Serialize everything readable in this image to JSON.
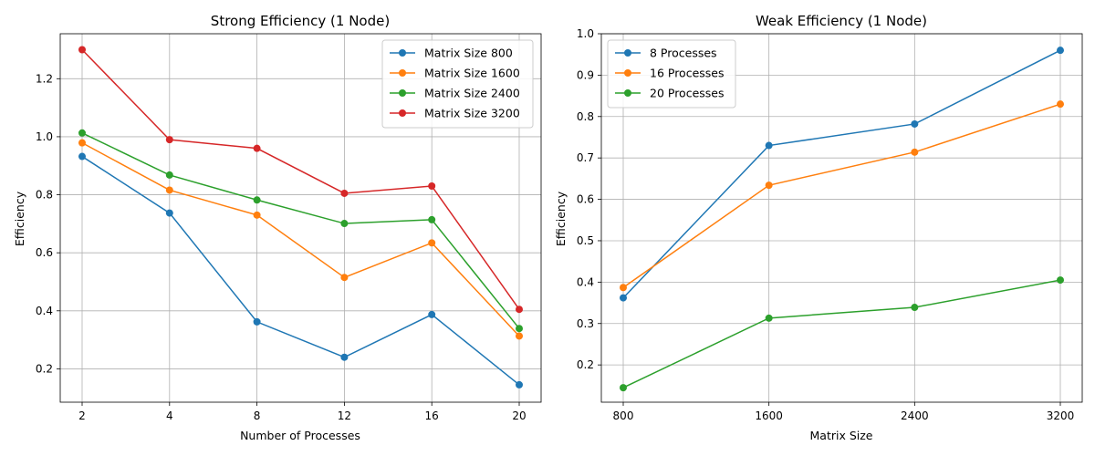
{
  "chart_data": [
    {
      "type": "line",
      "title": "Strong Efficiency (1 Node)",
      "xlabel": "Number of Processes",
      "ylabel": "Efficiency",
      "categories": [
        "2",
        "4",
        "8",
        "12",
        "16",
        "20"
      ],
      "ylim": [
        0.085,
        1.355
      ],
      "yticks": [
        0.2,
        0.4,
        0.6,
        0.8,
        1.0,
        1.2
      ],
      "grid": true,
      "legend_position": "upper right",
      "series": [
        {
          "name": "Matrix Size 800",
          "color": "#1f77b4",
          "values": [
            0.932,
            0.737,
            0.362,
            0.24,
            0.387,
            0.145
          ]
        },
        {
          "name": "Matrix Size 1600",
          "color": "#ff7f0e",
          "values": [
            0.979,
            0.816,
            0.73,
            0.515,
            0.634,
            0.313
          ]
        },
        {
          "name": "Matrix Size 2400",
          "color": "#2ca02c",
          "values": [
            1.013,
            0.868,
            0.782,
            0.701,
            0.714,
            0.339
          ]
        },
        {
          "name": "Matrix Size 3200",
          "color": "#d62728",
          "values": [
            1.3,
            0.99,
            0.96,
            0.805,
            0.83,
            0.405
          ]
        }
      ]
    },
    {
      "type": "line",
      "title": "Weak Efficiency (1 Node)",
      "xlabel": "Matrix Size",
      "ylabel": "Efficiency",
      "categories": [
        "800",
        "1600",
        "2400",
        "3200"
      ],
      "ylim": [
        0.11,
        1.0
      ],
      "yticks": [
        0.2,
        0.3,
        0.4,
        0.5,
        0.6,
        0.7,
        0.8,
        0.9,
        1.0
      ],
      "grid": true,
      "legend_position": "upper left",
      "series": [
        {
          "name": "8 Processes",
          "color": "#1f77b4",
          "values": [
            0.362,
            0.73,
            0.782,
            0.96
          ]
        },
        {
          "name": "16 Processes",
          "color": "#ff7f0e",
          "values": [
            0.387,
            0.634,
            0.714,
            0.83
          ]
        },
        {
          "name": "20 Processes",
          "color": "#2ca02c",
          "values": [
            0.145,
            0.313,
            0.339,
            0.405
          ]
        }
      ]
    }
  ]
}
